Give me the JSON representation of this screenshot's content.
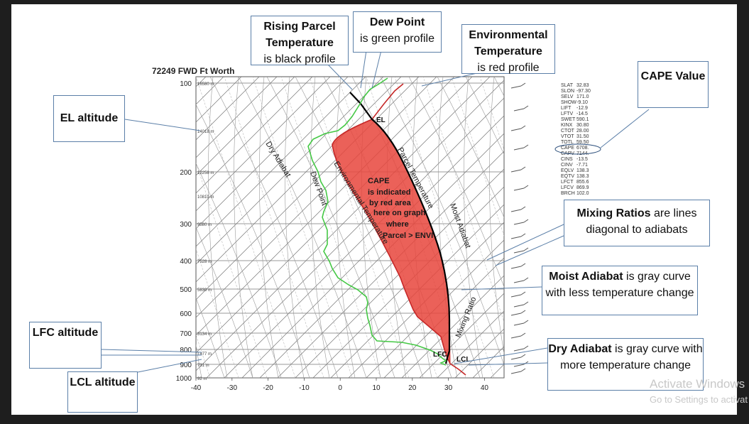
{
  "station_title": "72249 FWD Ft Worth",
  "pressure_labels": [
    "100",
    "200",
    "300",
    "400",
    "500",
    "600",
    "700",
    "800",
    "900",
    "1000"
  ],
  "height_labels": [
    "16580 m",
    "14018 m",
    "12258 m",
    "10810 m",
    "9580 m",
    "7528 m",
    "5830 m",
    "3134 m",
    "1477 m",
    "731 m",
    "92 m"
  ],
  "temp_ticks": [
    "-40",
    "-30",
    "-20",
    "-10",
    "0",
    "10",
    "20",
    "30",
    "40"
  ],
  "diagram_labels": {
    "dry_adiabat": "Dry Adiabat",
    "dew_point": "Dew Point",
    "env_temp": "Environmental Temperature",
    "parcel_temp": "Parcel Temperature",
    "moist_adiabat": "Moist Adiabat",
    "mixing_ratio": "Mixing Ratio",
    "el": "EL",
    "lfc": "LFC",
    "lcl": "LCL",
    "cape_text": [
      "CAPE",
      "is indicated",
      "by red area",
      "here on graph",
      "where",
      "Parcel > ENVI"
    ]
  },
  "indices": [
    {
      "k": "SLAT",
      "v": "32.83"
    },
    {
      "k": "SLON",
      "v": "-97.30"
    },
    {
      "k": "SELV",
      "v": "171.0"
    },
    {
      "k": "SHOW",
      "v": "-9.10"
    },
    {
      "k": "LIFT",
      "v": "-12.9"
    },
    {
      "k": "LFTV",
      "v": "-14.5"
    },
    {
      "k": "SWET",
      "v": "590.1"
    },
    {
      "k": "KINX",
      "v": "30.80"
    },
    {
      "k": "CTOT",
      "v": "28.00"
    },
    {
      "k": "VTOT",
      "v": "31.50"
    },
    {
      "k": "TOTL",
      "v": "59.50"
    },
    {
      "k": "CAPE",
      "v": "6708."
    },
    {
      "k": "CAPV",
      "v": "7144."
    },
    {
      "k": "CINS",
      "v": "-13.5"
    },
    {
      "k": "CINV",
      "v": "-7.71"
    },
    {
      "k": "EQLV",
      "v": "138.3"
    },
    {
      "k": "EQTV",
      "v": "138.3"
    },
    {
      "k": "LFCT",
      "v": "855.6"
    },
    {
      "k": "LFCV",
      "v": "869.9"
    },
    {
      "k": "BRCH",
      "v": "102.0"
    }
  ],
  "callouts": {
    "rising_parcel": {
      "bold": "Rising Parcel Temperature",
      "rest": "is black profile"
    },
    "dew_point": {
      "bold": "Dew Point",
      "rest": "is green profile"
    },
    "env_temp": {
      "bold": "Environmental Temperature",
      "rest": "is red profile"
    },
    "cape_value": {
      "bold": "CAPE Value"
    },
    "el_altitude": {
      "bold": "EL altitude"
    },
    "mixing_ratios": {
      "bold": "Mixing Ratios",
      "rest": "are lines diagonal to adiabats"
    },
    "moist_adiabat": {
      "bold": "Moist Adiabat",
      "rest": "is gray curve with less temperature change"
    },
    "dry_adiabat": {
      "bold": "Dry Adiabat",
      "rest": "is gray curve with more temperature change"
    },
    "lfc_altitude": {
      "bold": "LFC altitude"
    },
    "lcl_altitude": {
      "bold": "LCL altitude"
    }
  },
  "watermark": {
    "line1": "Activate Windows",
    "line2": "Go to Settings to activate Windows."
  },
  "colors": {
    "environment": "#e8453c",
    "cape_fill": "#e8453c",
    "dew_point": "#45c845",
    "parcel": "#000000",
    "callout_border": "#5b7fa8"
  }
}
